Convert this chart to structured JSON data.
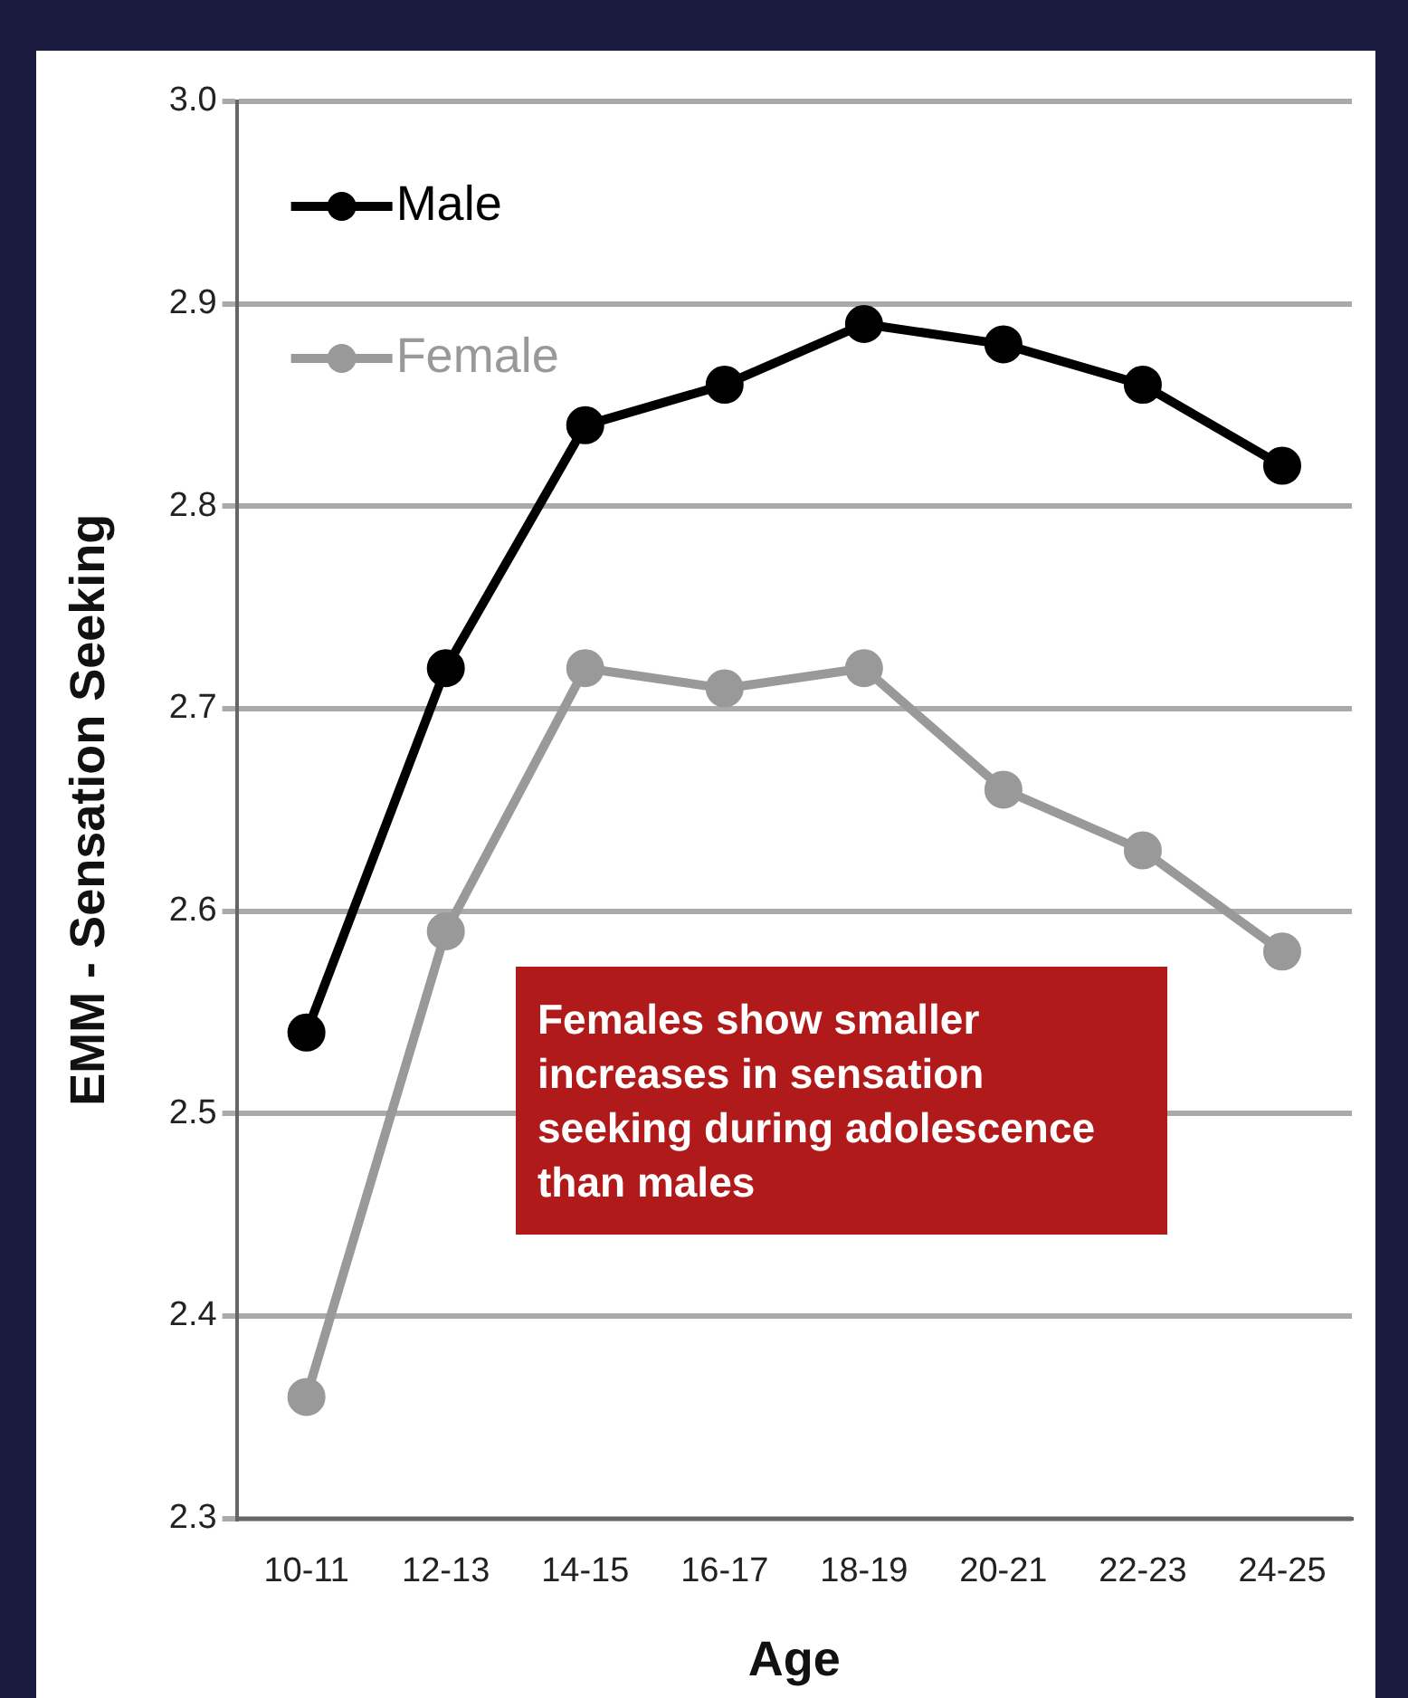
{
  "chart_data": {
    "type": "line",
    "xlabel": "Age",
    "ylabel": "EMM - Sensation Seeking",
    "categories": [
      "10-11",
      "12-13",
      "14-15",
      "16-17",
      "18-19",
      "20-21",
      "22-23",
      "24-25"
    ],
    "series": [
      {
        "name": "Male",
        "color": "#000000",
        "values": [
          2.54,
          2.72,
          2.84,
          2.86,
          2.89,
          2.88,
          2.86,
          2.82
        ]
      },
      {
        "name": "Female",
        "color": "#999999",
        "values": [
          2.36,
          2.59,
          2.72,
          2.71,
          2.72,
          2.66,
          2.63,
          2.58
        ]
      }
    ],
    "ylim": [
      2.3,
      3.0
    ],
    "yticks": [
      2.3,
      2.4,
      2.5,
      2.6,
      2.7,
      2.8,
      2.9,
      {
        "value": 3,
        "label": "3.0"
      }
    ],
    "grid": "y",
    "legend": "top left",
    "marker": "circle",
    "line_style": "solid",
    "annotations": [
      "Females show smaller increases in sensation seeking during adolescence than males"
    ]
  }
}
